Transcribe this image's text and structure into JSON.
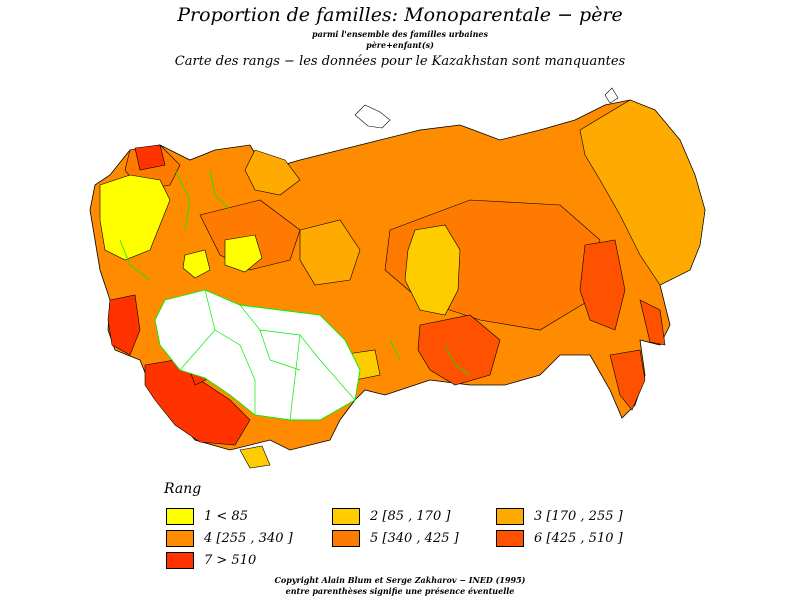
{
  "header": {
    "title": "Proportion  de  familles:  Monoparentale  −  père",
    "subtitle1": "parmi l'ensemble des familles urbaines",
    "subtitle2": "père+enfant(s)",
    "subtitle3": "Carte des  rangs − les données pour le Kazakhstan sont manquantes"
  },
  "colors": {
    "rank1": "#ffff00",
    "rank2": "#ffcc00",
    "rank3": "#ffaa00",
    "rank4": "#ff8c00",
    "rank5": "#ff7a00",
    "rank6": "#ff5200",
    "rank7": "#ff3300",
    "missing": "#ffffff",
    "borders": "#000000",
    "minor_borders": "#00ee00"
  },
  "legend": {
    "title": "Rang",
    "items": [
      {
        "label": "1  <  85",
        "color": "#ffff00"
      },
      {
        "label": "2  [85  ,  170  ]",
        "color": "#ffcc00"
      },
      {
        "label": "3  [170  ,  255  ]",
        "color": "#ffaa00"
      },
      {
        "label": "4  [255  ,  340  ]",
        "color": "#ff8c00"
      },
      {
        "label": "5  [340  ,  425  ]",
        "color": "#ff7a00"
      },
      {
        "label": "6  [425  ,  510  ]",
        "color": "#ff5200"
      },
      {
        "label": "7  >  510",
        "color": "#ff3300"
      }
    ]
  },
  "footer": {
    "line1": "Copyright  Alain  Blum  et  Serge  Zakharov  −  INED  (1995)",
    "line2": "entre parenthèses signifie une présence éventuelle"
  }
}
